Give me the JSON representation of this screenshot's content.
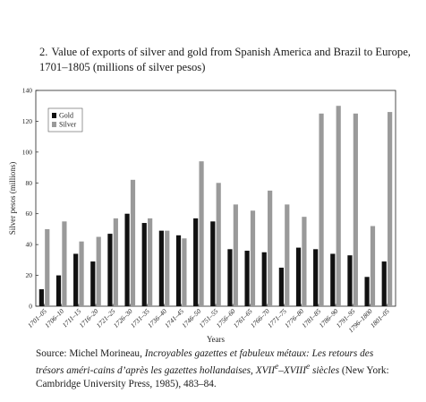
{
  "title": {
    "number": "2.",
    "line1": "Value of exports of silver and gold from Spanish America and Brazil to Europe,",
    "line2": "1701–1805 (millions of silver pesos)"
  },
  "chart_data": {
    "type": "bar",
    "xlabel": "Years",
    "ylabel": "Silver pesos (millions)",
    "ylim": [
      0,
      140
    ],
    "yticks": [
      0,
      20,
      40,
      60,
      80,
      100,
      120,
      140
    ],
    "categories": [
      "1701–05",
      "1706–10",
      "1711–15",
      "1716–20",
      "1721–25",
      "1726–30",
      "1731–35",
      "1736–40",
      "1741–45",
      "1746–50",
      "1751–55",
      "1756–60",
      "1761–65",
      "1766–70",
      "1771–75",
      "1776–80",
      "1781–85",
      "1786–90",
      "1791–95",
      "1796–1800",
      "1801–05"
    ],
    "category_labels": [
      "1701–05",
      "1706–10",
      "1711–15",
      "1716–20",
      "1721–25",
      "1726–30",
      "1731–35",
      "1736–40",
      "1741–45",
      "1746–50",
      "1751–55",
      "1756–60",
      "1761–65",
      "1766–70",
      "1771–75",
      "1776–80",
      "1781–85",
      "1786–90",
      "1791–95",
      "1796–1800",
      "1801–05"
    ],
    "series": [
      {
        "name": "Gold",
        "color": "#111111",
        "values": [
          11,
          20,
          34,
          29,
          47,
          60,
          54,
          49,
          46,
          57,
          55,
          37,
          36,
          35,
          25,
          38,
          37,
          34,
          33,
          19,
          29
        ]
      },
      {
        "name": "Silver",
        "color": "#9a9a9a",
        "values": [
          50,
          55,
          42,
          45,
          57,
          82,
          57,
          49,
          44,
          94,
          80,
          66,
          62,
          75,
          66,
          58,
          125,
          130,
          125,
          52,
          126
        ]
      }
    ],
    "legend": "top-left",
    "grid": false
  },
  "source": {
    "prefix": "Source: Michel Morineau, ",
    "italic1": "Incroyables gazettes et fabuleux métaux: Les retours des trésors améri-cains d’après les gazettes hollandaises, XVII",
    "sup1": "e",
    "italic_mid": "–XVIII",
    "sup2": "e",
    "italic2": " siècles",
    "suffix": " (New York: Cambridge University Press, 1985), 483–84."
  }
}
